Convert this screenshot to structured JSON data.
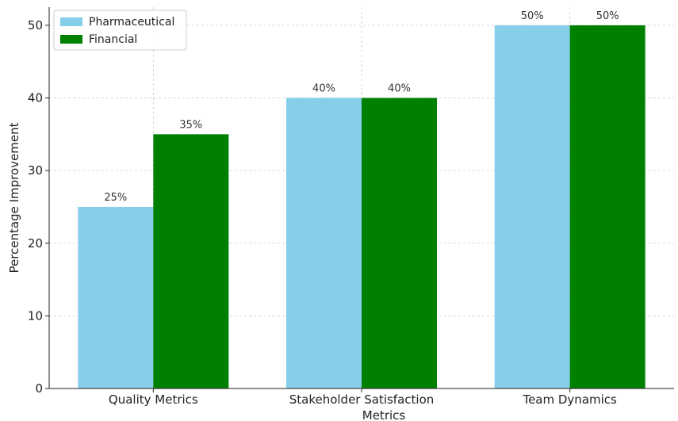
{
  "chart_data": {
    "type": "bar",
    "title": "",
    "xlabel": "Metrics",
    "ylabel": "Percentage Improvement",
    "categories": [
      "Quality Metrics",
      "Stakeholder Satisfaction",
      "Team Dynamics"
    ],
    "series": [
      {
        "name": "Pharmaceutical",
        "values": [
          25,
          40,
          50
        ],
        "labels": [
          "25%",
          "40%",
          "50%"
        ],
        "color": "#87ceeb"
      },
      {
        "name": "Financial",
        "values": [
          35,
          40,
          50
        ],
        "labels": [
          "35%",
          "40%",
          "50%"
        ],
        "color": "#008000"
      }
    ],
    "ylim": [
      0,
      52.5
    ],
    "yticks": [
      0,
      10,
      20,
      30,
      40,
      50
    ],
    "grid": true,
    "legend_position": "top-left"
  }
}
